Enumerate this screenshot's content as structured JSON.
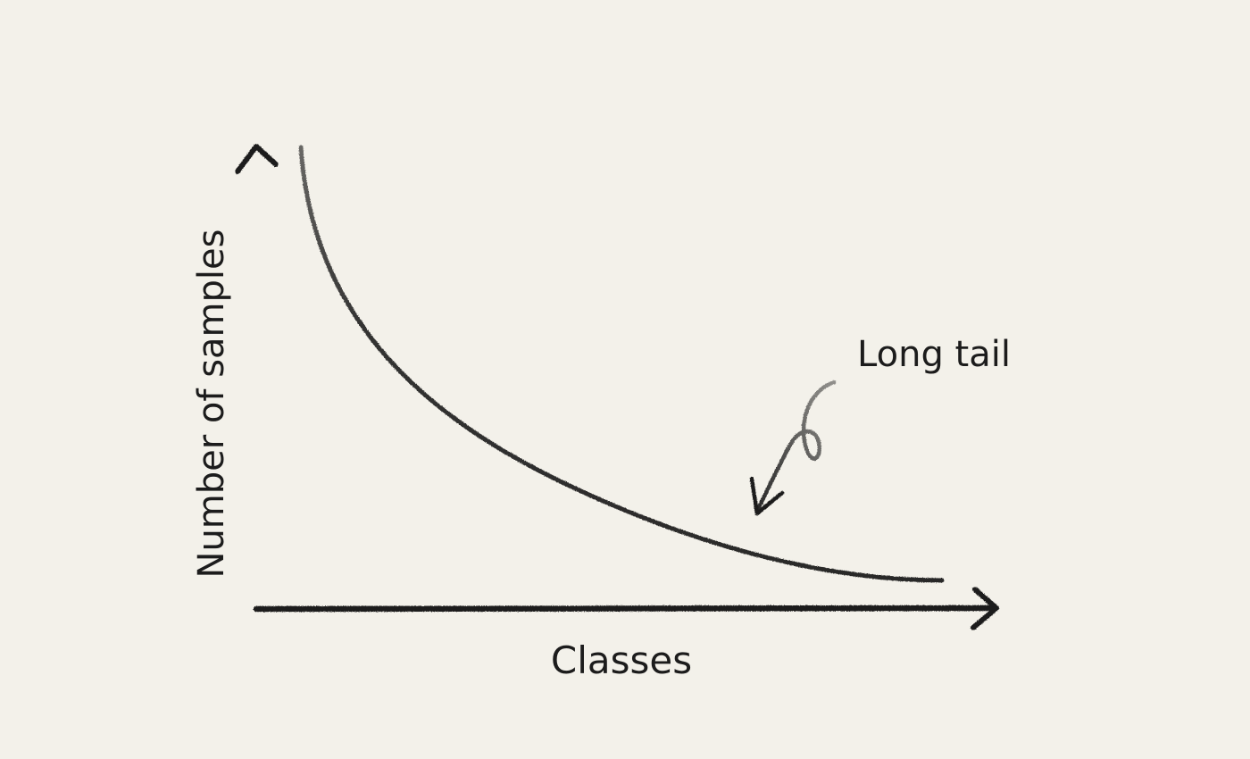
{
  "diagram": {
    "type": "long-tail-distribution-sketch",
    "xlabel": "Classes",
    "ylabel": "Number of samples",
    "annotation": "Long tail",
    "colors": {
      "background": "#f3f1ea",
      "ink": "#1c1c1c"
    }
  }
}
